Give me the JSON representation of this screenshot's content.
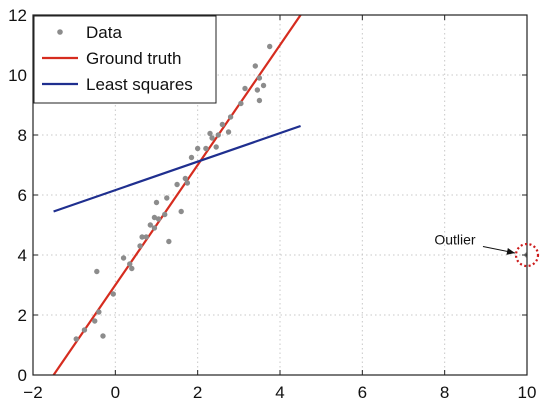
{
  "chart_data": {
    "type": "scatter",
    "xlim": [
      -2,
      10
    ],
    "ylim": [
      0,
      12
    ],
    "x_ticks": [
      -2,
      0,
      2,
      4,
      6,
      8,
      10
    ],
    "y_ticks": [
      0,
      2,
      4,
      6,
      8,
      10,
      12
    ],
    "grid": true,
    "legend_position": "top-left",
    "series": [
      {
        "name": "Data",
        "kind": "points",
        "color": "#8c8c8c",
        "points": [
          [
            -0.95,
            1.2
          ],
          [
            -0.75,
            1.5
          ],
          [
            -0.5,
            1.8
          ],
          [
            -0.45,
            3.45
          ],
          [
            -0.4,
            2.1
          ],
          [
            -0.3,
            1.3
          ],
          [
            -0.05,
            2.7
          ],
          [
            0.2,
            3.9
          ],
          [
            0.35,
            3.7
          ],
          [
            0.4,
            3.55
          ],
          [
            0.6,
            4.3
          ],
          [
            0.65,
            4.6
          ],
          [
            0.75,
            4.6
          ],
          [
            0.85,
            5.0
          ],
          [
            0.95,
            4.9
          ],
          [
            0.95,
            5.25
          ],
          [
            1.0,
            5.75
          ],
          [
            1.05,
            5.2
          ],
          [
            1.2,
            5.35
          ],
          [
            1.25,
            5.9
          ],
          [
            1.3,
            4.45
          ],
          [
            1.5,
            6.35
          ],
          [
            1.6,
            5.45
          ],
          [
            1.7,
            6.55
          ],
          [
            1.75,
            6.4
          ],
          [
            1.85,
            7.25
          ],
          [
            2.0,
            7.55
          ],
          [
            2.2,
            7.55
          ],
          [
            2.3,
            8.05
          ],
          [
            2.35,
            7.9
          ],
          [
            2.45,
            7.6
          ],
          [
            2.5,
            8.0
          ],
          [
            2.6,
            8.35
          ],
          [
            2.75,
            8.1
          ],
          [
            2.8,
            8.6
          ],
          [
            3.05,
            9.05
          ],
          [
            3.15,
            9.55
          ],
          [
            3.4,
            10.3
          ],
          [
            3.45,
            9.5
          ],
          [
            3.5,
            9.9
          ],
          [
            3.5,
            9.15
          ],
          [
            3.6,
            9.65
          ],
          [
            3.75,
            10.95
          ],
          [
            10.0,
            4.0
          ]
        ]
      },
      {
        "name": "Ground truth",
        "kind": "line",
        "color": "#d62c1f",
        "points": [
          [
            -1.5,
            0.0
          ],
          [
            4.5,
            12.0
          ]
        ]
      },
      {
        "name": "Least squares",
        "kind": "line",
        "color": "#1f2f8f",
        "points": [
          [
            -1.5,
            5.45
          ],
          [
            4.5,
            8.3
          ]
        ]
      }
    ],
    "annotation": {
      "text": "Outlier",
      "target": [
        10.0,
        4.0
      ],
      "label_at": [
        8.25,
        4.35
      ]
    }
  }
}
